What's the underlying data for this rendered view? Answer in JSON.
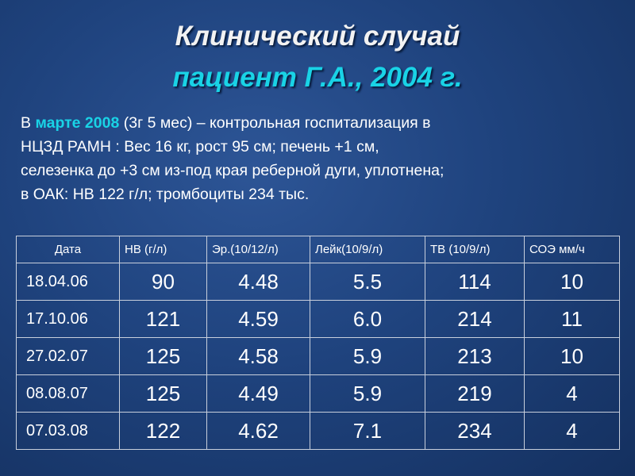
{
  "title": {
    "line1": "Клинический случай",
    "line2": "пациент Г.А., 2004 г."
  },
  "paragraph": {
    "lines": [
      [
        "В ",
        "марте 2008",
        " (3г 5 мес) – контрольная  госпитализация в"
      ],
      [
        "НЦЗД РАМН : Вес 16 кг, рост 95 см;  печень +1 см,"
      ],
      [
        "селезенка до +3 см из-под края реберной дуги, уплотнена;"
      ],
      [
        "в ОАК: НВ 122 г/л; тромбоциты  234 тыс."
      ]
    ]
  },
  "table": {
    "header": [
      "Дата",
      "НВ (г/л)",
      "Эр.(10/12/л)",
      "Лейк(10/9/л)",
      "ТВ (10/9/л)",
      "СОЭ мм/ч"
    ],
    "rows": [
      [
        "18.04.06",
        "90",
        "4.48",
        "5.5",
        "114",
        "10"
      ],
      [
        "17.10.06",
        "121",
        "4.59",
        "6.0",
        "214",
        "11"
      ],
      [
        "27.02.07",
        "125",
        "4.58",
        "5.9",
        "213",
        "10"
      ],
      [
        "08.08.07",
        "125",
        "4.49",
        "5.9",
        "219",
        "4"
      ],
      [
        "07.03.08",
        "122",
        "4.62",
        "7.1",
        "234",
        "4"
      ]
    ]
  }
}
